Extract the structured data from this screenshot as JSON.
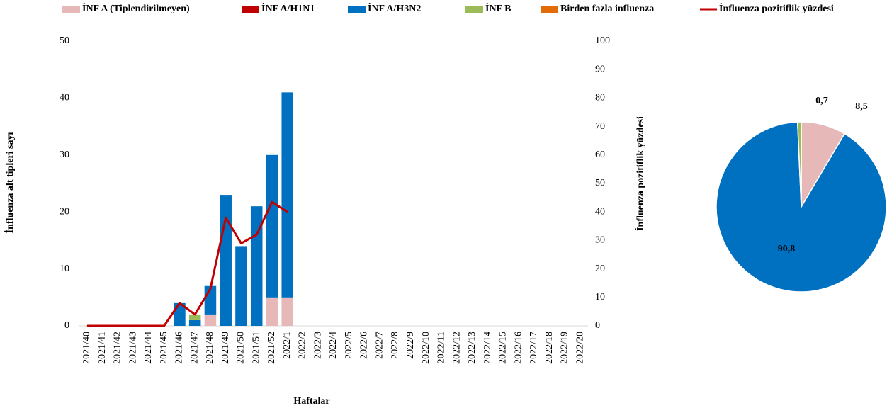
{
  "chart_data": [
    {
      "type": "bar",
      "stacked": true,
      "x_label": "Haftalar",
      "y_label": "İnfluenza alt tipleri sayı",
      "y2_label": "İnfluenza pozitiflik yüzdesi",
      "categories": [
        "2021/40",
        "2021/41",
        "2021/42",
        "2021/43",
        "2021/44",
        "2021/45",
        "2021/46",
        "2021/47",
        "2021/48",
        "2021/49",
        "2021/50",
        "2021/51",
        "2021/52",
        "2022/1",
        "2022/2",
        "2022/3",
        "2022/4",
        "2022/5",
        "2022/6",
        "2022/7",
        "2022/8",
        "2022/9",
        "2022/10",
        "2022/11",
        "2022/12",
        "2022/13",
        "2022/14",
        "2022/15",
        "2022/16",
        "2022/17",
        "2022/18",
        "2022/19",
        "2022/20"
      ],
      "ylim": [
        0,
        50
      ],
      "yticks": [
        0,
        10,
        20,
        30,
        40,
        50
      ],
      "y2lim": [
        0,
        100
      ],
      "y2ticks": [
        0,
        10,
        20,
        30,
        40,
        50,
        60,
        70,
        80,
        90,
        100
      ],
      "series": [
        {
          "name": "İNF A (Tiplendirilmeyen)",
          "color": "#e6b9b8",
          "values": [
            0,
            0,
            0,
            0,
            0,
            0,
            0,
            0,
            2,
            0,
            0,
            0,
            5,
            5,
            null,
            null,
            null,
            null,
            null,
            null,
            null,
            null,
            null,
            null,
            null,
            null,
            null,
            null,
            null,
            null,
            null,
            null,
            null
          ]
        },
        {
          "name": "İNF A/H1N1",
          "color": "#c00000",
          "values": [
            0,
            0,
            0,
            0,
            0,
            0,
            0,
            0,
            0,
            0,
            0,
            0,
            0,
            0,
            null,
            null,
            null,
            null,
            null,
            null,
            null,
            null,
            null,
            null,
            null,
            null,
            null,
            null,
            null,
            null,
            null,
            null,
            null
          ]
        },
        {
          "name": "İNF A/H3N2",
          "color": "#0070c0",
          "values": [
            0,
            0,
            0,
            0,
            0,
            0,
            4,
            1,
            5,
            23,
            14,
            21,
            25,
            36,
            null,
            null,
            null,
            null,
            null,
            null,
            null,
            null,
            null,
            null,
            null,
            null,
            null,
            null,
            null,
            null,
            null,
            null,
            null
          ]
        },
        {
          "name": "İNF B",
          "color": "#9bbb59",
          "values": [
            0,
            0,
            0,
            0,
            0,
            0,
            0,
            1,
            0,
            0,
            0,
            0,
            0,
            0,
            null,
            null,
            null,
            null,
            null,
            null,
            null,
            null,
            null,
            null,
            null,
            null,
            null,
            null,
            null,
            null,
            null,
            null,
            null
          ]
        },
        {
          "name": "Birden fazla influenza",
          "color": "#e36c09",
          "values": [
            0,
            0,
            0,
            0,
            0,
            0,
            0,
            0,
            0,
            0,
            0,
            0,
            0,
            0,
            null,
            null,
            null,
            null,
            null,
            null,
            null,
            null,
            null,
            null,
            null,
            null,
            null,
            null,
            null,
            null,
            null,
            null,
            null
          ]
        },
        {
          "name": "İnfluenza pozitiflik yüzdesi",
          "color": "#c00000",
          "type": "line",
          "axis": "y2",
          "values": [
            0,
            0,
            0,
            0,
            0,
            0,
            8,
            4,
            13,
            38,
            29,
            32,
            43.5,
            40,
            null,
            null,
            null,
            null,
            null,
            null,
            null,
            null,
            null,
            null,
            null,
            null,
            null,
            null,
            null,
            null,
            null,
            null,
            null
          ]
        }
      ]
    },
    {
      "type": "pie",
      "values": [
        8.5,
        90.8,
        0.7
      ],
      "value_labels": [
        "8,5",
        "90,8",
        "0,7"
      ],
      "colors": [
        "#e6b9b8",
        "#0070c0",
        "#9bbb59"
      ]
    }
  ]
}
